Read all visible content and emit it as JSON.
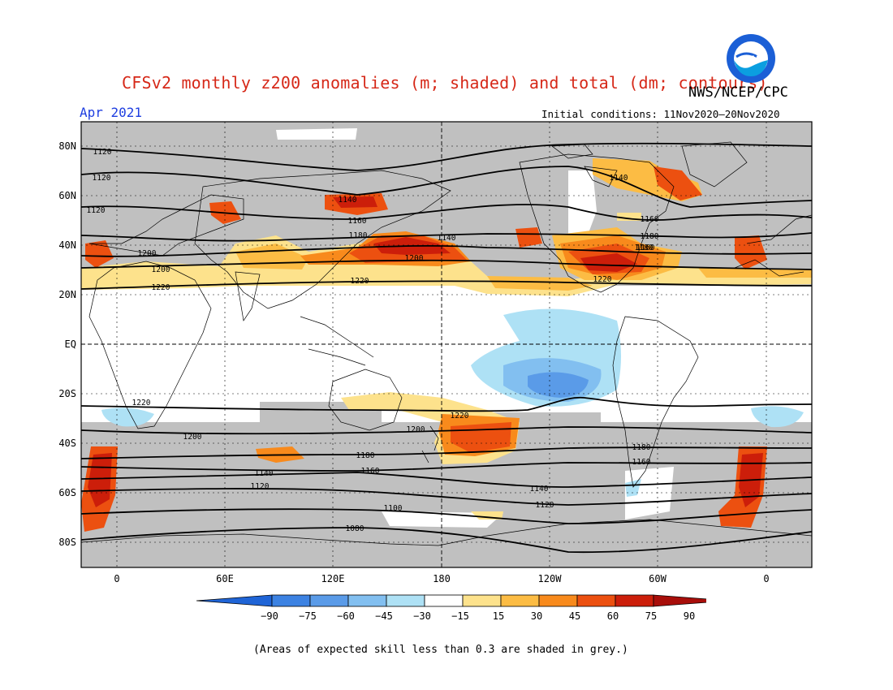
{
  "title": "CFSv2 monthly z200 anomalies (m; shaded) and total (dm; contours)",
  "agency": "NWS/NCEP/CPC",
  "logo_text": "NOAA",
  "month": "Apr 2021",
  "initial_conditions": "Initial conditions: 11Nov2020–20Nov2020",
  "footnote": "(Areas of expected skill less than 0.3 are shaded in grey.)",
  "lat_labels": [
    "80N",
    "60N",
    "40N",
    "20N",
    "EQ",
    "20S",
    "40S",
    "60S",
    "80S"
  ],
  "lon_labels": [
    "0",
    "60E",
    "120E",
    "180",
    "120W",
    "60W",
    "0"
  ],
  "colorbar": {
    "labels": [
      "−90",
      "−75",
      "−60",
      "−45",
      "−30",
      "−15",
      "15",
      "30",
      "45",
      "60",
      "75",
      "90"
    ],
    "colors": [
      "#1f64d6",
      "#3c82e2",
      "#5a9be8",
      "#82bff0",
      "#aee1f5",
      "#ffffff",
      "#fde28c",
      "#fcbc44",
      "#f88a1c",
      "#ec5010",
      "#cc1e0a",
      "#a80e0a"
    ]
  },
  "colors": {
    "grey_low_skill": "#c0c0c0",
    "title_red": "#d62818",
    "month_blue": "#1e3ee0"
  },
  "contour_labels": [
    "1120",
    "1140",
    "1160",
    "1180",
    "1200",
    "1220",
    "1120",
    "1140",
    "1160",
    "1180",
    "1200",
    "1220",
    "1120",
    "1140",
    "1160",
    "1180",
    "1200",
    "1220",
    "1220",
    "1200",
    "1180",
    "1160",
    "1140",
    "1120",
    "1220",
    "1200",
    "1180",
    "1160",
    "1140",
    "1120",
    "1100",
    "1080"
  ]
}
